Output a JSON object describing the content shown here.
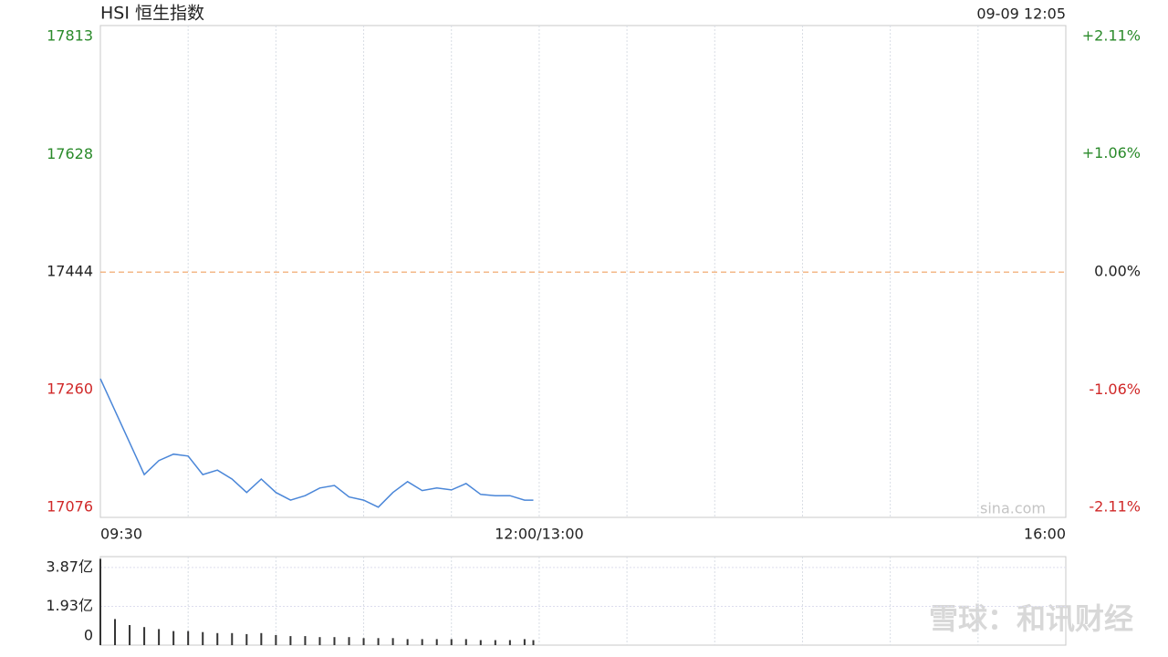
{
  "chart_data": [
    {
      "type": "line",
      "title": "HSI 恒生指数",
      "timestamp": "09-09 12:05",
      "annotations": [
        "sina.com"
      ],
      "x": [
        "09:30",
        "09:35",
        "09:40",
        "09:45",
        "09:50",
        "09:55",
        "10:00",
        "10:05",
        "10:10",
        "10:15",
        "10:20",
        "10:25",
        "10:30",
        "10:35",
        "10:40",
        "10:45",
        "10:50",
        "10:55",
        "11:00",
        "11:05",
        "11:10",
        "11:15",
        "11:20",
        "11:25",
        "11:30",
        "11:35",
        "11:40",
        "11:45",
        "11:50",
        "11:55",
        "11:58"
      ],
      "series": [
        {
          "name": "HSI",
          "color": "#4a86d8",
          "values": [
            17277,
            17227,
            17177,
            17127,
            17149,
            17159,
            17156,
            17127,
            17134,
            17120,
            17099,
            17120,
            17099,
            17087,
            17094,
            17106,
            17110,
            17092,
            17087,
            17076,
            17099,
            17116,
            17102,
            17106,
            17103,
            17113,
            17096,
            17094,
            17094,
            17087,
            17087
          ]
        }
      ],
      "xlim": [
        "09:30",
        "16:00"
      ],
      "xticks": [
        "09:30",
        {
          "value": "12:00",
          "label": "12:00/13:00"
        },
        "16:00"
      ],
      "ylim": [
        17060,
        17830
      ],
      "yticks": [
        17076,
        17260,
        17444,
        17628,
        17813
      ],
      "y2lim": [
        -2.2,
        2.21
      ],
      "y2ticks": [
        {
          "value": -2.11,
          "label": "-2.11%"
        },
        {
          "value": -1.06,
          "label": "-1.06%"
        },
        {
          "value": 0,
          "label": "0.00%"
        },
        {
          "value": 1.06,
          "label": "+1.06%"
        },
        {
          "value": 2.11,
          "label": "+2.11%"
        }
      ],
      "reference_line": 17444,
      "reference_color": "#f0a060",
      "tick_colors": {
        "up": "#2a8a2a",
        "down": "#d02828",
        "flat": "#222222"
      },
      "grid": "x"
    },
    {
      "type": "bar",
      "watermark": "雪球：和讯财经",
      "x": [
        "09:30",
        "09:35",
        "09:40",
        "09:45",
        "09:50",
        "09:55",
        "10:00",
        "10:05",
        "10:10",
        "10:15",
        "10:20",
        "10:25",
        "10:30",
        "10:35",
        "10:40",
        "10:45",
        "10:50",
        "10:55",
        "11:00",
        "11:05",
        "11:10",
        "11:15",
        "11:20",
        "11:25",
        "11:30",
        "11:35",
        "11:40",
        "11:45",
        "11:50",
        "11:55",
        "11:58"
      ],
      "values": [
        4.3,
        1.3,
        1.0,
        0.9,
        0.8,
        0.7,
        0.7,
        0.65,
        0.6,
        0.6,
        0.55,
        0.6,
        0.5,
        0.45,
        0.45,
        0.4,
        0.4,
        0.4,
        0.35,
        0.35,
        0.35,
        0.3,
        0.3,
        0.3,
        0.3,
        0.3,
        0.25,
        0.25,
        0.25,
        0.3,
        0.25
      ],
      "color": "#333333",
      "xlim": [
        "09:30",
        "16:00"
      ],
      "ylim": [
        0,
        4.41
      ],
      "yticks": [
        0,
        {
          "value": 1.93,
          "label": "1.93亿"
        },
        {
          "value": 3.87,
          "label": "3.87亿"
        }
      ],
      "grid": true
    }
  ]
}
